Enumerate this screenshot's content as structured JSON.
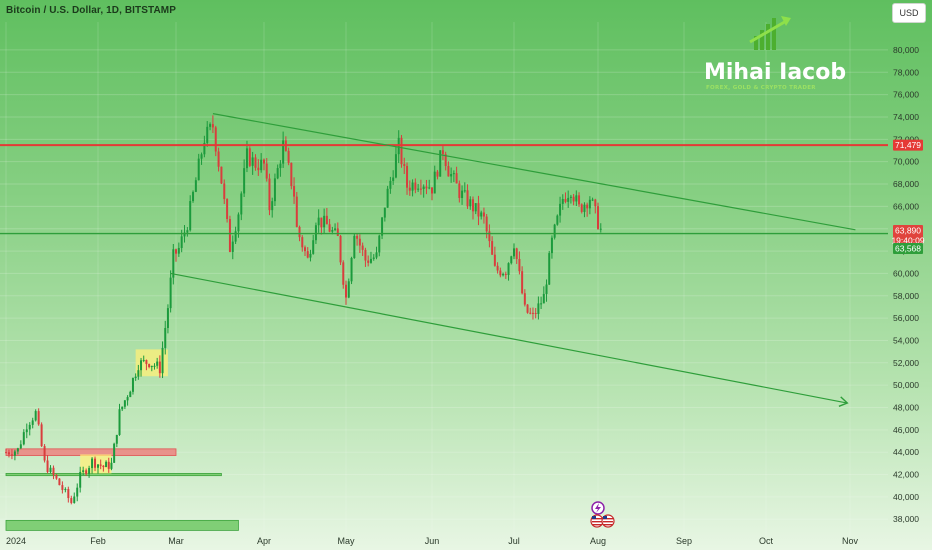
{
  "header": {
    "title": "Bitcoin / U.S. Dollar, 1D, BITSTAMP",
    "currency_button": "USD"
  },
  "logo": {
    "name": "Mihai Iacob",
    "tagline": "FOREX, GOLD & CRYPTO TRADER"
  },
  "colors": {
    "resistance": "#e53935",
    "support": "#2e9e3a",
    "channel": "#2e9e3a",
    "candle_up": "#1b9a3c",
    "candle_down": "#d93d3d"
  },
  "chart_data": {
    "type": "candlestick",
    "symbol": "BTC/USD",
    "y_axis": {
      "ticks": [
        38000,
        40000,
        42000,
        44000,
        46000,
        48000,
        50000,
        52000,
        54000,
        56000,
        58000,
        60000,
        62000,
        64000,
        66000,
        68000,
        70000,
        72000,
        74000,
        76000,
        78000,
        80000
      ],
      "tick_labels": [
        "38,000",
        "40,000",
        "42,000",
        "44,000",
        "46,000",
        "48,000",
        "50,000",
        "52,000",
        "54,000",
        "56,000",
        "58,000",
        "60,000",
        "62,000",
        "64,000",
        "66,000",
        "68,000",
        "70,000",
        "72,000",
        "74,000",
        "76,000",
        "78,000",
        "80,000"
      ],
      "range": [
        36500,
        82500
      ]
    },
    "x_axis": {
      "tick_labels": [
        "2024",
        "Feb",
        "Mar",
        "Apr",
        "May",
        "Jun",
        "Jul",
        "Aug",
        "Sep",
        "Oct",
        "Nov"
      ],
      "tick_dates": [
        "2024-01-01",
        "2024-02-01",
        "2024-03-01",
        "2024-04-01",
        "2024-05-01",
        "2024-06-01",
        "2024-07-01",
        "2024-08-01",
        "2024-09-01",
        "2024-10-01",
        "2024-11-01"
      ]
    },
    "levels": {
      "resistance": {
        "value": 71479,
        "label": "71,479"
      },
      "support": {
        "value": 63568,
        "label": "63,568"
      },
      "last_price": {
        "value": 63890,
        "label": "63,890",
        "countdown": "19:40:09"
      }
    },
    "channel": {
      "upper": [
        {
          "date": "2024-03-14",
          "value": 74300
        },
        {
          "date": "2024-11-03",
          "value": 63900
        }
      ],
      "lower": [
        {
          "date": "2024-02-28",
          "value": 60000
        },
        {
          "date": "2024-10-31",
          "value": 48400
        }
      ]
    },
    "zones": [
      {
        "kind": "resistance",
        "from": "2024-01-01",
        "to": "2024-03-01",
        "low": 43700,
        "high": 44300
      },
      {
        "kind": "support",
        "from": "2024-01-01",
        "to": "2024-03-17",
        "low": 41900,
        "high": 42100
      },
      {
        "kind": "support",
        "from": "2024-01-01",
        "to": "2024-03-23",
        "low": 37000,
        "high": 37900
      },
      {
        "kind": "consolidation",
        "from": "2024-01-26",
        "to": "2024-02-06",
        "low": 42100,
        "high": 43800
      },
      {
        "kind": "consolidation",
        "from": "2024-02-15",
        "to": "2024-02-27",
        "low": 50800,
        "high": 53200
      }
    ],
    "close_path": [
      [
        "2024-01-01",
        44000
      ],
      [
        "2024-01-05",
        44200
      ],
      [
        "2024-01-08",
        46500
      ],
      [
        "2024-01-11",
        47500
      ],
      [
        "2024-01-14",
        43000
      ],
      [
        "2024-01-18",
        41500
      ],
      [
        "2024-01-23",
        39500
      ],
      [
        "2024-01-26",
        41800
      ],
      [
        "2024-01-30",
        43200
      ],
      [
        "2024-02-03",
        42700
      ],
      [
        "2024-02-06",
        42900
      ],
      [
        "2024-02-09",
        47500
      ],
      [
        "2024-02-13",
        49800
      ],
      [
        "2024-02-16",
        51900
      ],
      [
        "2024-02-20",
        52100
      ],
      [
        "2024-02-24",
        51500
      ],
      [
        "2024-02-27",
        57000
      ],
      [
        "2024-02-29",
        61500
      ],
      [
        "2024-03-02",
        62200
      ],
      [
        "2024-03-05",
        64500
      ],
      [
        "2024-03-08",
        68300
      ],
      [
        "2024-03-11",
        72100
      ],
      [
        "2024-03-14",
        73200
      ],
      [
        "2024-03-17",
        68300
      ],
      [
        "2024-03-20",
        62300
      ],
      [
        "2024-03-23",
        65500
      ],
      [
        "2024-03-26",
        70500
      ],
      [
        "2024-03-29",
        69800
      ],
      [
        "2024-04-01",
        69700
      ],
      [
        "2024-04-03",
        65900
      ],
      [
        "2024-04-08",
        71500
      ],
      [
        "2024-04-12",
        67100
      ],
      [
        "2024-04-13",
        64000
      ],
      [
        "2024-04-17",
        61200
      ],
      [
        "2024-04-20",
        64900
      ],
      [
        "2024-04-24",
        64300
      ],
      [
        "2024-04-28",
        63100
      ],
      [
        "2024-05-01",
        57800
      ],
      [
        "2024-05-04",
        63900
      ],
      [
        "2024-05-08",
        61200
      ],
      [
        "2024-05-12",
        61500
      ],
      [
        "2024-05-15",
        66200
      ],
      [
        "2024-05-20",
        71400
      ],
      [
        "2024-05-23",
        67800
      ],
      [
        "2024-05-28",
        68300
      ],
      [
        "2024-06-01",
        67700
      ],
      [
        "2024-06-05",
        71100
      ],
      [
        "2024-06-07",
        69300
      ],
      [
        "2024-06-11",
        67300
      ],
      [
        "2024-06-15",
        66200
      ],
      [
        "2024-06-20",
        64800
      ],
      [
        "2024-06-24",
        60300
      ],
      [
        "2024-06-28",
        60300
      ],
      [
        "2024-07-01",
        62800
      ],
      [
        "2024-07-05",
        56700
      ],
      [
        "2024-07-08",
        56100
      ],
      [
        "2024-07-12",
        57900
      ],
      [
        "2024-07-15",
        62800
      ],
      [
        "2024-07-19",
        66700
      ],
      [
        "2024-07-22",
        67600
      ],
      [
        "2024-07-25",
        65800
      ],
      [
        "2024-07-29",
        66800
      ],
      [
        "2024-08-01",
        64600
      ],
      [
        "2024-08-02",
        63890
      ]
    ]
  }
}
